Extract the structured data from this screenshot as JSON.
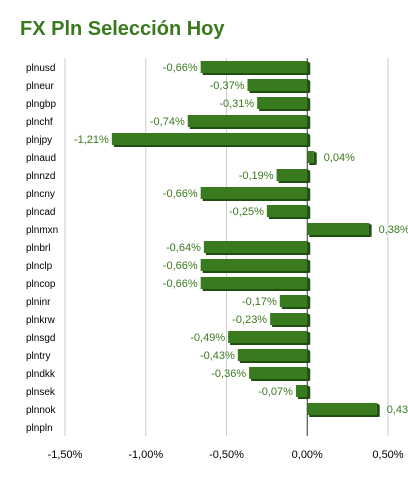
{
  "title": "FX Pln Selección Hoy",
  "chart_data": {
    "type": "bar",
    "orientation": "horizontal",
    "categories": [
      "plnusd",
      "plneur",
      "plngbp",
      "plnchf",
      "plnjpy",
      "plnaud",
      "plnnzd",
      "plncny",
      "plncad",
      "plnmxn",
      "plnbrl",
      "plnclp",
      "plncop",
      "plninr",
      "plnkrw",
      "plnsgd",
      "plntry",
      "plndkk",
      "plnsek",
      "plnnok",
      "plnpln"
    ],
    "values": [
      -0.66,
      -0.37,
      -0.31,
      -0.74,
      -1.21,
      0.04,
      -0.19,
      -0.66,
      -0.25,
      0.38,
      -0.64,
      -0.66,
      -0.66,
      -0.17,
      -0.23,
      -0.49,
      -0.43,
      -0.36,
      -0.07,
      0.43,
      null
    ],
    "data_labels": [
      "-0,66%",
      "-0,37%",
      "-0,31%",
      "-0,74%",
      "-1,21%",
      "0,04%",
      "-0,19%",
      "-0,66%",
      "-0,25%",
      "0,38%",
      "-0,64%",
      "-0,66%",
      "-0,66%",
      "-0,17%",
      "-0,23%",
      "-0,49%",
      "-0,43%",
      "-0,36%",
      "-0,07%",
      "0,43",
      ""
    ],
    "xlim": [
      -1.5,
      0.5
    ],
    "xticks": [
      -1.5,
      -1.0,
      -0.5,
      0.0,
      0.5
    ],
    "xtick_labels": [
      "-1,50%",
      "-1,00%",
      "-0,50%",
      "0,00%",
      "0,50%"
    ],
    "grid": true,
    "bar_color": "#3a7a1e"
  }
}
